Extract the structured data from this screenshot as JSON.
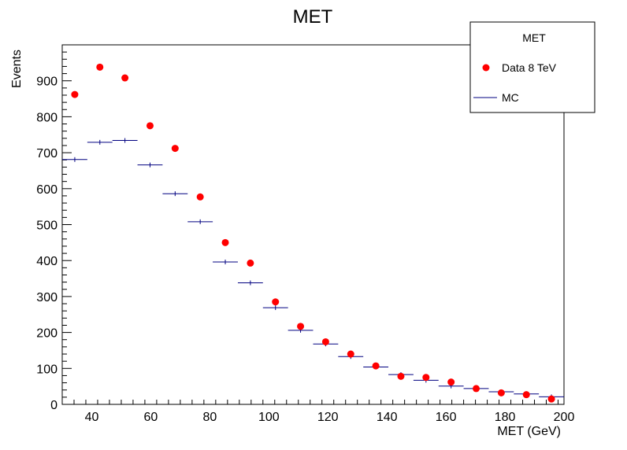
{
  "chart_data": {
    "type": "scatter",
    "title": "MET",
    "xlabel": "MET (GeV)",
    "ylabel": "Events",
    "xlim": [
      30,
      200
    ],
    "ylim": [
      0,
      1000
    ],
    "x_ticks": [
      40,
      60,
      80,
      100,
      120,
      140,
      160,
      180,
      200
    ],
    "y_ticks": [
      0,
      100,
      200,
      300,
      400,
      500,
      600,
      700,
      800,
      900
    ],
    "grid": false,
    "legend": {
      "title": "MET",
      "position": "top-right",
      "entries": [
        "Data 8 TeV",
        "MC"
      ]
    },
    "x": [
      34.25,
      42.75,
      51.25,
      59.75,
      68.25,
      76.75,
      85.25,
      93.75,
      102.25,
      110.75,
      119.25,
      127.75,
      136.25,
      144.75,
      153.25,
      161.75,
      170.25,
      178.75,
      187.25,
      195.75
    ],
    "bin_width": 8.5,
    "series": [
      {
        "name": "Data 8 TeV",
        "style": "markers",
        "color": "#ff0000",
        "values": [
          862,
          938,
          908,
          775,
          712,
          577,
          450,
          393,
          285,
          217,
          174,
          140,
          107,
          78,
          75,
          62,
          44,
          32,
          27,
          15
        ]
      },
      {
        "name": "MC",
        "style": "horizontal-bars",
        "color": "#000080",
        "values": [
          681,
          729,
          734,
          666,
          586,
          508,
          396,
          338,
          269,
          206,
          168,
          133,
          104,
          83,
          67,
          51,
          44,
          35,
          29,
          21
        ]
      }
    ]
  }
}
